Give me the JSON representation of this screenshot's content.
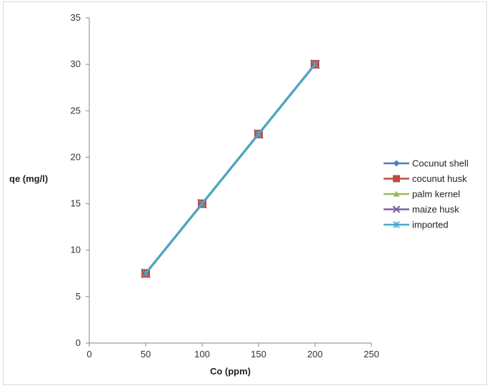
{
  "chart_data": {
    "type": "line",
    "title": "",
    "xlabel": "Co (ppm)",
    "ylabel": "qe (mg/l)",
    "xlim": [
      0,
      250
    ],
    "ylim": [
      0,
      35
    ],
    "xticks": [
      0,
      50,
      100,
      150,
      200,
      250
    ],
    "yticks": [
      0,
      5,
      10,
      15,
      20,
      25,
      30,
      35
    ],
    "grid": false,
    "legend_position": "right",
    "x": [
      50,
      100,
      150,
      200
    ],
    "series": [
      {
        "name": "Cocunut shell",
        "values": [
          7.5,
          15,
          22.5,
          30
        ],
        "color": "#4a7ebb",
        "marker": "diamond"
      },
      {
        "name": "cocunut husk",
        "values": [
          7.5,
          15,
          22.5,
          30
        ],
        "color": "#be4b48",
        "marker": "square"
      },
      {
        "name": "palm kernel",
        "values": [
          7.5,
          15,
          22.5,
          30
        ],
        "color": "#98b954",
        "marker": "triangle"
      },
      {
        "name": "maize husk",
        "values": [
          7.5,
          15,
          22.5,
          30
        ],
        "color": "#7d60a0",
        "marker": "x"
      },
      {
        "name": "imported",
        "values": [
          7.5,
          15,
          22.5,
          30
        ],
        "color": "#46aac5",
        "marker": "star"
      }
    ]
  }
}
